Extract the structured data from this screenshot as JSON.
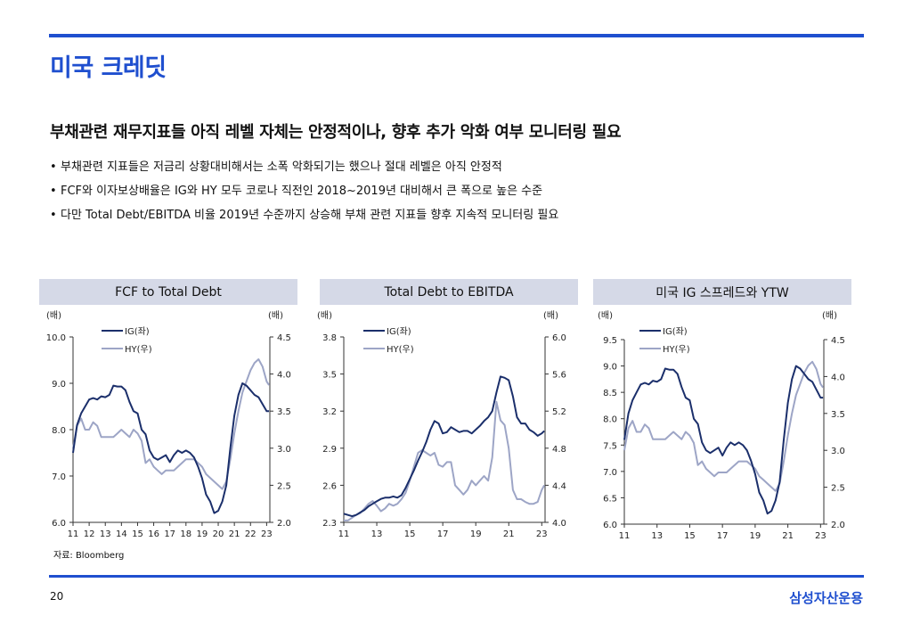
{
  "page": {
    "title": "미국 크레딧",
    "headline": "부채관련 재무지표들 아직 레벨 자체는 안정적이나, 향후 추가 악화 여부 모니터링 필요",
    "bullets": [
      "부채관련 지표들은 저금리 상황대비해서는 소폭 악화되기는 했으나 절대 레벨은 아직 안정적",
      "FCF와 이자보상배율은 IG와 HY 모두 코로나 직전인 2018~2019년 대비해서 큰 폭으로 높은 수준",
      "다만 Total Debt/EBITDA 비율 2019년 수준까지 상승해 부채 관련 지표들 향후 지속적 모니터링 필요"
    ],
    "source": "자료: Bloomberg",
    "page_number": "20",
    "brand": "삼성자산운용",
    "colors": {
      "accent": "#1f4fcf",
      "ig": "#1b2f6b",
      "hy": "#9da5c6",
      "header_bg": "#d5d9e7"
    }
  },
  "chart_data": [
    {
      "type": "line",
      "title": "FCF to Total Debt",
      "left_unit": "(배)",
      "right_unit": "(배)",
      "left_axis": {
        "min": 6.0,
        "max": 10.0,
        "ticks": [
          "6.0",
          "7.0",
          "8.0",
          "9.0",
          "10.0"
        ]
      },
      "right_axis": {
        "min": 2.0,
        "max": 4.5,
        "ticks": [
          "2.0",
          "2.5",
          "3.0",
          "3.5",
          "4.0",
          "4.5"
        ]
      },
      "x_range": [
        11,
        23.2
      ],
      "x_ticks": [
        "11",
        "12",
        "13",
        "14",
        "15",
        "16",
        "17",
        "18",
        "19",
        "20",
        "21",
        "22",
        "23"
      ],
      "legend": [
        "IG(좌)",
        "HY(우)"
      ],
      "series": [
        {
          "name": "IG(좌)",
          "axis": "left",
          "x": [
            11,
            11.25,
            11.5,
            11.75,
            12,
            12.25,
            12.5,
            12.75,
            13,
            13.25,
            13.5,
            13.75,
            14,
            14.25,
            14.5,
            14.75,
            15,
            15.25,
            15.5,
            15.75,
            16,
            16.25,
            16.5,
            16.75,
            17,
            17.25,
            17.5,
            17.75,
            18,
            18.25,
            18.5,
            18.75,
            19,
            19.25,
            19.5,
            19.75,
            20,
            20.25,
            20.5,
            20.75,
            21,
            21.25,
            21.5,
            21.75,
            22,
            22.25,
            22.5,
            22.75,
            23,
            23.15
          ],
          "values": [
            7.5,
            8.1,
            8.35,
            8.5,
            8.65,
            8.68,
            8.65,
            8.72,
            8.7,
            8.75,
            8.95,
            8.93,
            8.93,
            8.85,
            8.6,
            8.4,
            8.35,
            8.0,
            7.9,
            7.55,
            7.4,
            7.35,
            7.4,
            7.45,
            7.3,
            7.45,
            7.55,
            7.5,
            7.55,
            7.5,
            7.4,
            7.2,
            6.95,
            6.6,
            6.45,
            6.2,
            6.25,
            6.45,
            6.8,
            7.6,
            8.3,
            8.75,
            9.0,
            8.95,
            8.85,
            8.75,
            8.7,
            8.55,
            8.4,
            8.4
          ]
        },
        {
          "name": "HY(우)",
          "axis": "right",
          "x": [
            11,
            11.25,
            11.5,
            11.75,
            12,
            12.25,
            12.5,
            12.75,
            13,
            13.25,
            13.5,
            13.75,
            14,
            14.25,
            14.5,
            14.75,
            15,
            15.25,
            15.5,
            15.75,
            16,
            16.25,
            16.5,
            16.75,
            17,
            17.25,
            17.5,
            17.75,
            18,
            18.25,
            18.5,
            18.75,
            19,
            19.25,
            19.5,
            19.75,
            20,
            20.25,
            20.5,
            20.75,
            21,
            21.25,
            21.5,
            21.75,
            22,
            22.25,
            22.5,
            22.75,
            23,
            23.15
          ],
          "values": [
            3.0,
            3.3,
            3.4,
            3.25,
            3.25,
            3.35,
            3.3,
            3.15,
            3.15,
            3.15,
            3.15,
            3.2,
            3.25,
            3.2,
            3.15,
            3.25,
            3.2,
            3.1,
            2.8,
            2.85,
            2.75,
            2.7,
            2.65,
            2.7,
            2.7,
            2.7,
            2.75,
            2.8,
            2.85,
            2.85,
            2.85,
            2.8,
            2.75,
            2.65,
            2.6,
            2.55,
            2.5,
            2.45,
            2.55,
            2.85,
            3.2,
            3.5,
            3.75,
            3.9,
            4.05,
            4.15,
            4.2,
            4.1,
            3.9,
            3.85
          ]
        }
      ]
    },
    {
      "type": "line",
      "title": "Total Debt to EBITDA",
      "left_unit": "(배)",
      "right_unit": "(배)",
      "left_axis": {
        "min": 2.3,
        "max": 3.8,
        "ticks": [
          "2.3",
          "2.6",
          "2.9",
          "3.2",
          "3.5",
          "3.8"
        ]
      },
      "right_axis": {
        "min": 4.0,
        "max": 6.0,
        "ticks": [
          "4.0",
          "4.4",
          "4.8",
          "5.2",
          "5.6",
          "6.0"
        ]
      },
      "x_range": [
        11,
        23.2
      ],
      "x_ticks": [
        "11",
        "13",
        "15",
        "17",
        "19",
        "21",
        "23"
      ],
      "legend": [
        "IG(좌)",
        "HY(우)"
      ],
      "series": [
        {
          "name": "IG(좌)",
          "axis": "left",
          "x": [
            11,
            11.25,
            11.5,
            11.75,
            12,
            12.25,
            12.5,
            12.75,
            13,
            13.25,
            13.5,
            13.75,
            14,
            14.25,
            14.5,
            14.75,
            15,
            15.25,
            15.5,
            15.75,
            16,
            16.25,
            16.5,
            16.75,
            17,
            17.25,
            17.5,
            17.75,
            18,
            18.25,
            18.5,
            18.75,
            19,
            19.25,
            19.5,
            19.75,
            20,
            20.25,
            20.5,
            20.75,
            21,
            21.25,
            21.5,
            21.75,
            22,
            22.25,
            22.5,
            22.75,
            23,
            23.15
          ],
          "values": [
            2.37,
            2.36,
            2.35,
            2.36,
            2.38,
            2.4,
            2.43,
            2.45,
            2.47,
            2.49,
            2.5,
            2.5,
            2.51,
            2.5,
            2.52,
            2.58,
            2.65,
            2.72,
            2.8,
            2.87,
            2.95,
            3.05,
            3.12,
            3.1,
            3.02,
            3.03,
            3.07,
            3.05,
            3.03,
            3.04,
            3.04,
            3.02,
            3.05,
            3.08,
            3.12,
            3.15,
            3.2,
            3.35,
            3.48,
            3.47,
            3.45,
            3.32,
            3.15,
            3.1,
            3.1,
            3.05,
            3.03,
            3.0,
            3.02,
            3.04
          ]
        },
        {
          "name": "HY(우)",
          "axis": "right",
          "x": [
            11,
            11.25,
            11.5,
            11.75,
            12,
            12.25,
            12.5,
            12.75,
            13,
            13.25,
            13.5,
            13.75,
            14,
            14.25,
            14.5,
            14.75,
            15,
            15.25,
            15.5,
            15.75,
            16,
            16.25,
            16.5,
            16.75,
            17,
            17.25,
            17.5,
            17.75,
            18,
            18.25,
            18.5,
            18.75,
            19,
            19.25,
            19.5,
            19.75,
            20,
            20.25,
            20.5,
            20.75,
            21,
            21.25,
            21.5,
            21.75,
            22,
            22.25,
            22.5,
            22.75,
            23,
            23.15
          ],
          "values": [
            4.02,
            4.02,
            4.05,
            4.08,
            4.1,
            4.15,
            4.2,
            4.23,
            4.18,
            4.12,
            4.15,
            4.2,
            4.18,
            4.2,
            4.25,
            4.32,
            4.45,
            4.6,
            4.75,
            4.78,
            4.75,
            4.72,
            4.75,
            4.62,
            4.6,
            4.65,
            4.65,
            4.4,
            4.35,
            4.3,
            4.35,
            4.45,
            4.4,
            4.45,
            4.5,
            4.45,
            4.7,
            5.3,
            5.1,
            5.05,
            4.8,
            4.35,
            4.25,
            4.25,
            4.22,
            4.2,
            4.2,
            4.22,
            4.35,
            4.4
          ]
        }
      ]
    },
    {
      "type": "line",
      "title": "미국 IG 스프레드와 YTW",
      "left_unit": "(배)",
      "right_unit": "(배)",
      "left_axis": {
        "min": 6.0,
        "max": 9.5,
        "ticks": [
          "6.0",
          "6.5",
          "7.0",
          "7.5",
          "8.0",
          "8.5",
          "9.0",
          "9.5"
        ]
      },
      "right_axis": {
        "min": 2.0,
        "max": 4.5,
        "ticks": [
          "2.0",
          "2.5",
          "3.0",
          "3.5",
          "4.0",
          "4.5"
        ]
      },
      "x_range": [
        11,
        23.2
      ],
      "x_ticks": [
        "11",
        "13",
        "15",
        "17",
        "19",
        "21",
        "23"
      ],
      "legend": [
        "IG(좌)",
        "HY(우)"
      ],
      "series": [
        {
          "name": "IG(좌)",
          "axis": "left",
          "x": [
            11,
            11.25,
            11.5,
            11.75,
            12,
            12.25,
            12.5,
            12.75,
            13,
            13.25,
            13.5,
            13.75,
            14,
            14.25,
            14.5,
            14.75,
            15,
            15.25,
            15.5,
            15.75,
            16,
            16.25,
            16.5,
            16.75,
            17,
            17.25,
            17.5,
            17.75,
            18,
            18.25,
            18.5,
            18.75,
            19,
            19.25,
            19.5,
            19.75,
            20,
            20.25,
            20.5,
            20.75,
            21,
            21.25,
            21.5,
            21.75,
            22,
            22.25,
            22.5,
            22.75,
            23,
            23.15
          ],
          "values": [
            7.6,
            8.1,
            8.35,
            8.5,
            8.65,
            8.68,
            8.65,
            8.72,
            8.7,
            8.75,
            8.95,
            8.93,
            8.93,
            8.85,
            8.6,
            8.4,
            8.35,
            8.0,
            7.9,
            7.55,
            7.4,
            7.35,
            7.4,
            7.45,
            7.3,
            7.45,
            7.55,
            7.5,
            7.55,
            7.5,
            7.4,
            7.2,
            6.95,
            6.6,
            6.45,
            6.2,
            6.25,
            6.45,
            6.8,
            7.6,
            8.3,
            8.75,
            9.0,
            8.95,
            8.85,
            8.75,
            8.7,
            8.55,
            8.4,
            8.4
          ]
        },
        {
          "name": "HY(우)",
          "axis": "right",
          "x": [
            11,
            11.25,
            11.5,
            11.75,
            12,
            12.25,
            12.5,
            12.75,
            13,
            13.25,
            13.5,
            13.75,
            14,
            14.25,
            14.5,
            14.75,
            15,
            15.25,
            15.5,
            15.75,
            16,
            16.25,
            16.5,
            16.75,
            17,
            17.25,
            17.5,
            17.75,
            18,
            18.25,
            18.5,
            18.75,
            19,
            19.25,
            19.5,
            19.75,
            20,
            20.25,
            20.5,
            20.75,
            21,
            21.25,
            21.5,
            21.75,
            22,
            22.25,
            22.5,
            22.75,
            23,
            23.15
          ],
          "values": [
            3.0,
            3.3,
            3.4,
            3.25,
            3.25,
            3.35,
            3.3,
            3.15,
            3.15,
            3.15,
            3.15,
            3.2,
            3.25,
            3.2,
            3.15,
            3.25,
            3.2,
            3.1,
            2.8,
            2.85,
            2.75,
            2.7,
            2.65,
            2.7,
            2.7,
            2.7,
            2.75,
            2.8,
            2.85,
            2.85,
            2.85,
            2.8,
            2.75,
            2.65,
            2.6,
            2.55,
            2.5,
            2.45,
            2.55,
            2.85,
            3.2,
            3.5,
            3.75,
            3.9,
            4.05,
            4.15,
            4.2,
            4.1,
            3.9,
            3.85
          ]
        }
      ]
    }
  ]
}
